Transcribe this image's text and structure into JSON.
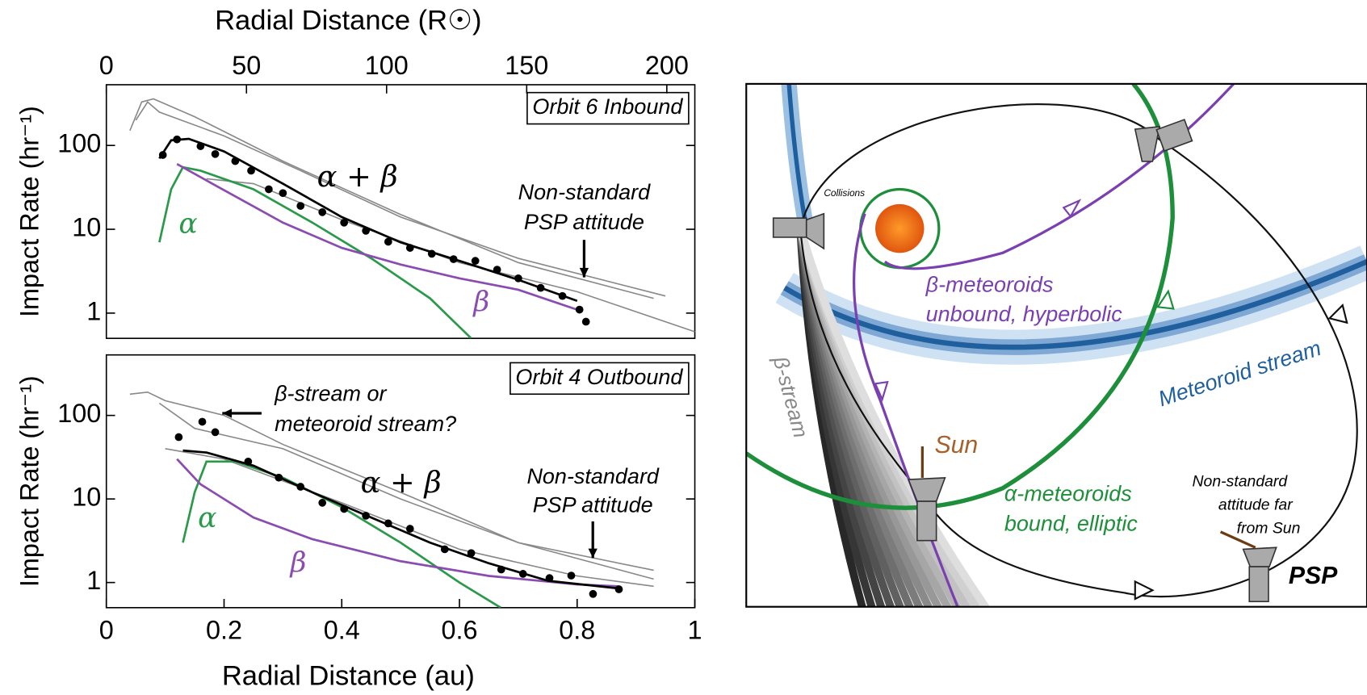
{
  "chart_data": [
    {
      "type": "line",
      "title": "Orbit 6 Inbound",
      "ylabel": "Impact Rate (hr⁻¹)",
      "x2label": "Radial Distance (R☉)",
      "yscale": "log",
      "ylim": [
        0.5,
        530
      ],
      "yticks": [
        1,
        10,
        100
      ],
      "xlim": [
        0,
        1
      ],
      "x2lim": [
        0,
        210
      ],
      "x2ticks": [
        0,
        50,
        100,
        150,
        200
      ],
      "annotations": [
        [
          "α + β"
        ],
        [
          "Non-standard",
          "PSP attitude"
        ]
      ],
      "series": [
        {
          "color": "#888888",
          "x": [
            0.04,
            0.06,
            0.08,
            0.15,
            0.3,
            0.5,
            0.7,
            0.93
          ],
          "values": [
            150,
            330,
            360,
            220,
            65,
            15,
            4,
            1.5
          ]
        },
        {
          "color": "#888888",
          "x": [
            0.05,
            0.07,
            0.09,
            0.2,
            0.33,
            0.5,
            0.7,
            0.95
          ],
          "values": [
            200,
            330,
            250,
            130,
            50,
            14,
            4.5,
            1.6
          ]
        },
        {
          "color": "#888888",
          "x": [
            0.17,
            0.25,
            0.4,
            0.6,
            0.8,
            1.0
          ],
          "values": [
            40,
            35,
            13,
            4,
            1.8,
            0.6
          ]
        },
        {
          "name": "α",
          "color": "#2a9a4a",
          "x": [
            0.09,
            0.11,
            0.13,
            0.16,
            0.25,
            0.35,
            0.45,
            0.55,
            0.62
          ],
          "values": [
            7,
            30,
            55,
            50,
            30,
            12,
            4.5,
            1.5,
            0.5
          ]
        },
        {
          "name": "β",
          "color": "#8a4cb0",
          "x": [
            0.12,
            0.18,
            0.3,
            0.4,
            0.5,
            0.6,
            0.7,
            0.8
          ],
          "values": [
            60,
            35,
            12,
            6,
            3.8,
            2.6,
            1.9,
            1.1
          ]
        },
        {
          "color": "#000000",
          "x": [
            0.09,
            0.11,
            0.14,
            0.2,
            0.3,
            0.4,
            0.5,
            0.6,
            0.7,
            0.8
          ],
          "values": [
            70,
            115,
            120,
            85,
            35,
            14,
            7,
            4.2,
            2.5,
            1.4
          ]
        },
        {
          "marker": "point",
          "color": "#000000",
          "x": [
            0.096,
            0.12,
            0.16,
            0.185,
            0.219,
            0.246,
            0.276,
            0.3,
            0.33,
            0.367,
            0.404,
            0.441,
            0.479,
            0.516,
            0.553,
            0.59,
            0.627,
            0.664,
            0.7,
            0.738,
            0.775,
            0.804,
            0.815
          ],
          "values": [
            77,
            118,
            98,
            79,
            65,
            50,
            30,
            27,
            19,
            16,
            12,
            9.6,
            7.1,
            6.0,
            5.1,
            4.4,
            4.2,
            3.3,
            2.6,
            2.0,
            1.6,
            1.1,
            0.79
          ]
        }
      ]
    },
    {
      "type": "line",
      "title": "Orbit 4 Outbound",
      "ylabel": "Impact Rate (hr⁻¹)",
      "xlabel": "Radial Distance (au)",
      "yscale": "log",
      "ylim": [
        0.5,
        530
      ],
      "yticks": [
        1,
        10,
        100
      ],
      "xlim": [
        0,
        1
      ],
      "xticks": [
        0,
        0.2,
        0.4,
        0.6,
        0.8,
        1
      ],
      "annotations": [
        [
          "α + β"
        ],
        [
          "Non-standard",
          "PSP attitude"
        ],
        [
          "β-stream or",
          "meteoroid stream?"
        ]
      ],
      "series": [
        {
          "color": "#888888",
          "x": [
            0.04,
            0.07,
            0.1,
            0.2,
            0.3,
            0.5,
            0.7,
            0.93
          ],
          "values": [
            180,
            190,
            150,
            100,
            45,
            12,
            3,
            1.4
          ]
        },
        {
          "color": "#888888",
          "x": [
            0.09,
            0.15,
            0.3,
            0.5,
            0.7,
            0.93
          ],
          "values": [
            140,
            70,
            40,
            10,
            3,
            1.1
          ]
        },
        {
          "color": "#888888",
          "x": [
            0.1,
            0.2,
            0.4,
            0.6,
            0.8,
            0.93
          ],
          "values": [
            40,
            30,
            9,
            2.5,
            1.2,
            0.9
          ]
        },
        {
          "name": "α",
          "color": "#2a9a4a",
          "x": [
            0.13,
            0.15,
            0.17,
            0.22,
            0.3,
            0.4,
            0.5,
            0.6,
            0.67
          ],
          "values": [
            3,
            12,
            28,
            28,
            18,
            8,
            3,
            1,
            0.5
          ]
        },
        {
          "name": "β",
          "color": "#8a4cb0",
          "x": [
            0.12,
            0.16,
            0.25,
            0.35,
            0.5,
            0.65,
            0.8,
            0.87
          ],
          "values": [
            30,
            15,
            6,
            3.3,
            1.8,
            1.2,
            0.95,
            0.9
          ]
        },
        {
          "color": "#000000",
          "x": [
            0.13,
            0.17,
            0.25,
            0.35,
            0.45,
            0.55,
            0.65,
            0.75,
            0.87
          ],
          "values": [
            38,
            36,
            25,
            12,
            6,
            3,
            1.7,
            1.05,
            0.85
          ]
        },
        {
          "marker": "point",
          "color": "#000000",
          "x": [
            0.123,
            0.163,
            0.185,
            0.241,
            0.293,
            0.33,
            0.367,
            0.404,
            0.441,
            0.479,
            0.516,
            0.575,
            0.62,
            0.671,
            0.708,
            0.753,
            0.79,
            0.827,
            0.871
          ],
          "values": [
            55,
            84,
            63,
            28,
            18,
            14,
            9,
            7.6,
            6.3,
            5.1,
            4.4,
            2.5,
            2.25,
            1.43,
            1.27,
            1.13,
            1.21,
            0.73,
            0.83
          ]
        }
      ]
    }
  ],
  "diagram": {
    "labels": {
      "collisions": "Collisions",
      "beta_meteoroids": [
        "β-meteoroids",
        "unbound, hyperbolic"
      ],
      "meteoroid_stream": "Meteoroid stream",
      "beta_stream": "β-stream",
      "sun": "Sun",
      "alpha_meteoroids": [
        "α-meteoroids",
        "bound, elliptic"
      ],
      "attitude": [
        "Non-standard",
        "attitude far",
        "from Sun"
      ],
      "psp": "PSP"
    }
  }
}
